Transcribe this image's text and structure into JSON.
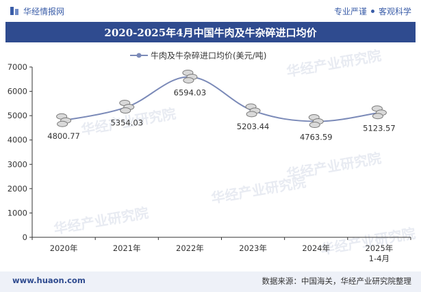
{
  "header": {
    "brand": "华经情报网",
    "tagline_left": "专业严谨",
    "tagline_right": "客观科学"
  },
  "footer": {
    "website": "www.huaon.com",
    "source": "数据来源：中国海关，华经产业研究院整理"
  },
  "watermark": "华经产业研究院",
  "colors": {
    "title_bg": "#2f4b8f",
    "line": "#7b8ab8",
    "marker": "#9a9a9a"
  },
  "chart_data": {
    "type": "line",
    "title": "2020-2025年4月中国牛肉及牛杂碎进口均价",
    "legend": "牛肉及牛杂碎进口均价(美元/吨)",
    "legend_position": "top",
    "categories": [
      "2020年",
      "2021年",
      "2022年",
      "2023年",
      "2024年",
      "2025年\n1-4月"
    ],
    "series": [
      {
        "name": "牛肉及牛杂碎进口均价(美元/吨)",
        "values": [
          4800.77,
          5354.03,
          6594.03,
          5203.44,
          4763.59,
          5123.57
        ]
      }
    ],
    "data_labels": [
      "4800.77",
      "5354.03",
      "6594.03",
      "5203.44",
      "4763.59",
      "5123.57"
    ],
    "ylim": [
      0,
      7000
    ],
    "yticks": [
      0,
      1000,
      2000,
      3000,
      4000,
      5000,
      6000,
      7000
    ],
    "xlabel": "",
    "ylabel": "",
    "grid": false
  }
}
